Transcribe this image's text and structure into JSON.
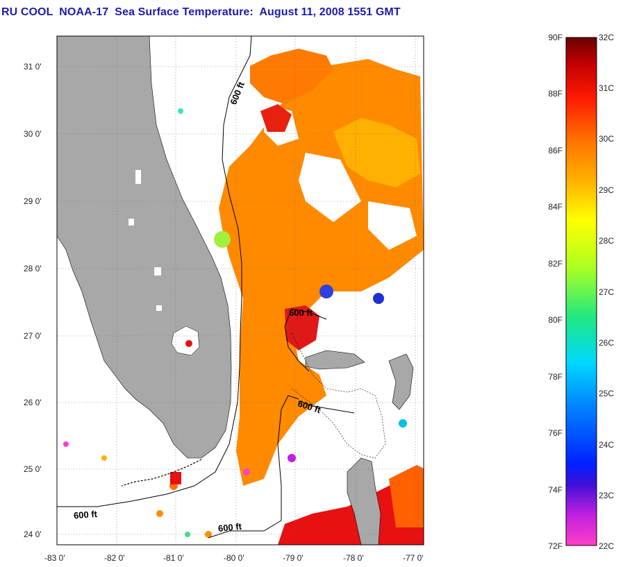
{
  "title": "RU COOL  NOAA-17  Sea Surface Temperature:  August 11, 2008 1551 GMT",
  "map": {
    "lat_labels": [
      "31 0'",
      "30 0'",
      "29 0'",
      "28 0'",
      "27 0'",
      "26 0'",
      "25 0'",
      "24 0'"
    ],
    "lon_labels": [
      "-83 0'",
      "-82 0'",
      "-81 0'",
      "-80 0'",
      "-79 0'",
      "-78 0'",
      "-77 0'"
    ],
    "contour_label": "600 ft",
    "colors": {
      "land": "#a8a8a8",
      "no_data": "#ffffff",
      "warm_water": "#ff8a00",
      "hot_water": "#e81010"
    }
  },
  "colorbar": {
    "f_labels": [
      "90F",
      "88F",
      "86F",
      "84F",
      "82F",
      "80F",
      "78F",
      "76F",
      "74F",
      "72F"
    ],
    "c_labels": [
      "32C",
      "31C",
      "30C",
      "29C",
      "28C",
      "27C",
      "26C",
      "25C",
      "24C",
      "23C",
      "22C"
    ],
    "stops": [
      "#ff40c8",
      "#c020e0",
      "#3010d0",
      "#0040ff",
      "#00a0ff",
      "#00e8f0",
      "#20e080",
      "#a0ff20",
      "#ffff00",
      "#ffb000",
      "#ff7000",
      "#ff2000",
      "#d00000",
      "#700000"
    ]
  }
}
